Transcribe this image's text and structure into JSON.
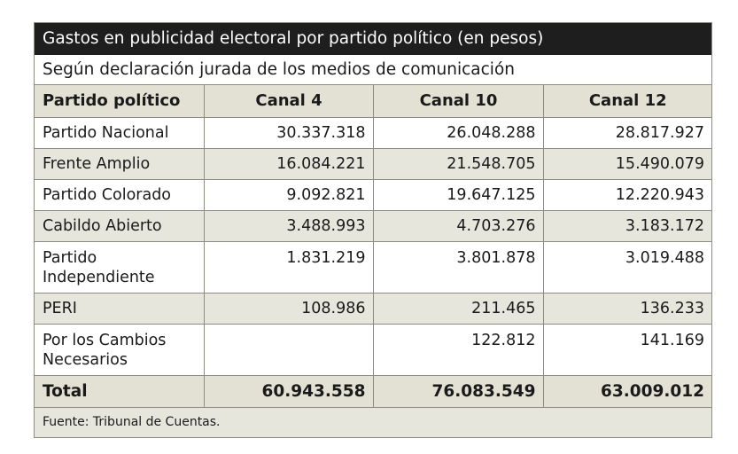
{
  "chart_data": {
    "type": "table",
    "title": "Gastos en publicidad electoral por partido político (en pesos)",
    "subtitle": "Según declaración jurada de los medios de comunicación",
    "columns": [
      "Partido político",
      "Canal 4",
      "Canal 10",
      "Canal 12"
    ],
    "rows": [
      {
        "party": "Partido Nacional",
        "canal4": "30.337.318",
        "canal10": "26.048.288",
        "canal12": "28.817.927"
      },
      {
        "party": "Frente Amplio",
        "canal4": "16.084.221",
        "canal10": "21.548.705",
        "canal12": "15.490.079"
      },
      {
        "party": "Partido Colorado",
        "canal4": "9.092.821",
        "canal10": "19.647.125",
        "canal12": "12.220.943"
      },
      {
        "party": "Cabildo Abierto",
        "canal4": "3.488.993",
        "canal10": "4.703.276",
        "canal12": "3.183.172"
      },
      {
        "party": "Partido Independiente",
        "canal4": "1.831.219",
        "canal10": "3.801.878",
        "canal12": "3.019.488"
      },
      {
        "party": "PERI",
        "canal4": "108.986",
        "canal10": "211.465",
        "canal12": "136.233"
      },
      {
        "party": "Por los Cambios Necesarios",
        "canal4": "",
        "canal10": "122.812",
        "canal12": "141.169"
      }
    ],
    "total": {
      "label": "Total",
      "canal4": "60.943.558",
      "canal10": "76.083.549",
      "canal12": "63.009.012"
    },
    "source": "Fuente: Tribunal de Cuentas."
  }
}
